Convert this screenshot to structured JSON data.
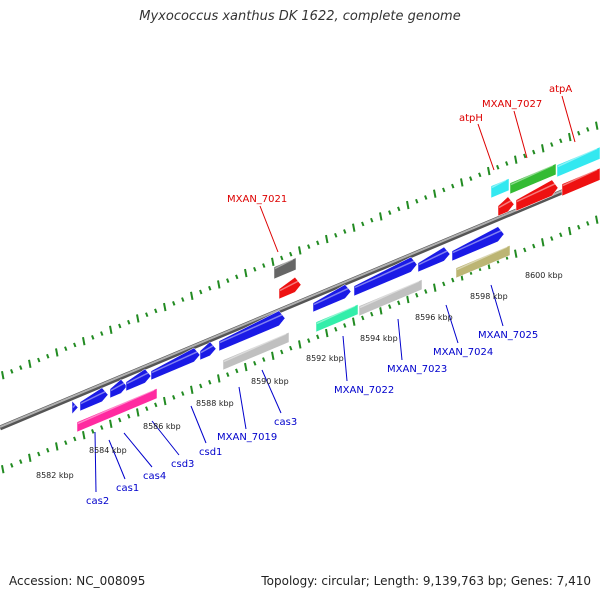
{
  "title": "Myxococcus xanthus DK 1622, complete genome",
  "footer": {
    "accession": "Accession: NC_008095",
    "meta": "Topology: circular; Length: 9,139,763 bp; Genes: 7,410"
  },
  "colors": {
    "backbone": "#8a8a8a",
    "tick": "#228b22",
    "blue_label": "#0000cc",
    "red_label": "#dd0000",
    "cds_blue": "#1a1ae6",
    "cds_magenta": "#ff2aa0",
    "cds_silver": "#c0c0c0",
    "cds_teal": "#33eeaa",
    "cds_olive": "#bcb574",
    "cds_dark": "#666666",
    "cds_red": "#ee1111",
    "cds_cyan": "#33e8f0",
    "cds_green": "#33bb33"
  },
  "position_labels": [
    "8582 kbp",
    "8584 kbp",
    "8586 kbp",
    "8588 kbp",
    "8590 kbp",
    "8592 kbp",
    "8594 kbp",
    "8596 kbp",
    "8598 kbp",
    "8600 kbp"
  ],
  "gene_labels_bottom": [
    "cas2",
    "cas1",
    "cas4",
    "csd3",
    "csd1",
    "MXAN_7019",
    "cas3",
    "MXAN_7022",
    "MXAN_7023",
    "MXAN_7024",
    "MXAN_7025"
  ],
  "gene_labels_top": [
    "MXAN_7021",
    "atpH",
    "MXAN_7027",
    "atpA"
  ]
}
